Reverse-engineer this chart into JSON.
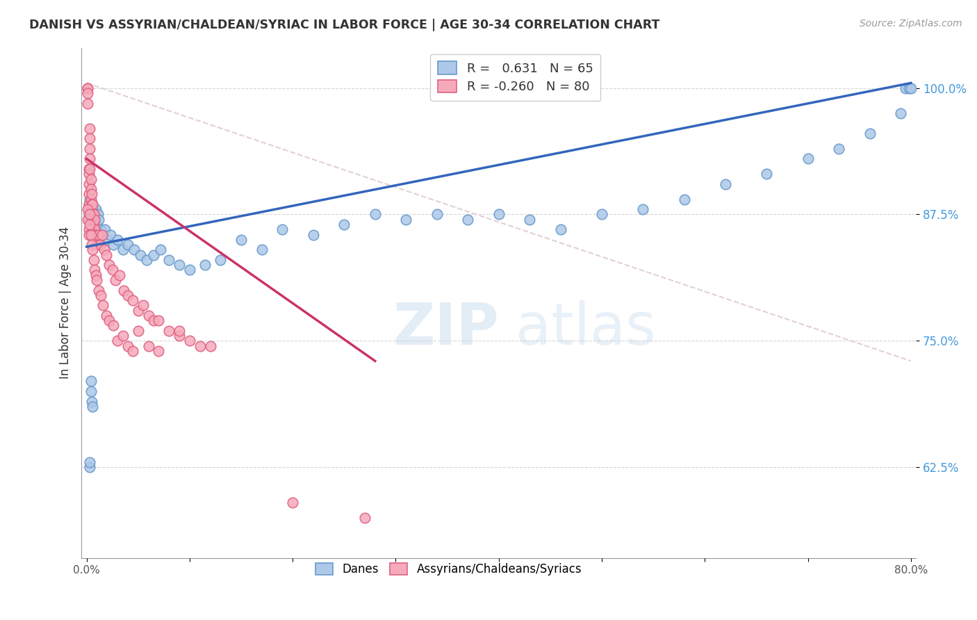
{
  "title": "DANISH VS ASSYRIAN/CHALDEAN/SYRIAC IN LABOR FORCE | AGE 30-34 CORRELATION CHART",
  "source": "Source: ZipAtlas.com",
  "ylabel": "In Labor Force | Age 30-34",
  "yticks": [
    0.625,
    0.75,
    0.875,
    1.0
  ],
  "ytick_labels": [
    "62.5%",
    "75.0%",
    "87.5%",
    "100.0%"
  ],
  "xlim": [
    -0.005,
    0.805
  ],
  "ylim": [
    0.535,
    1.04
  ],
  "legend_r_blue": "0.631",
  "legend_n_blue": "65",
  "legend_r_pink": "-0.260",
  "legend_n_pink": "80",
  "legend_label_blue": "Danes",
  "legend_label_pink": "Assyrians/Chaldeans/Syriacs",
  "blue_color": "#adc8e8",
  "pink_color": "#f5aabb",
  "blue_edge": "#6699cc",
  "pink_edge": "#e06080",
  "trend_blue_color": "#3366bb",
  "trend_pink_color": "#cc3366",
  "trend_gray_color": "#d0b0b8",
  "blue_trend_x": [
    0.0,
    0.8
  ],
  "blue_trend_y": [
    0.843,
    1.005
  ],
  "pink_trend_x": [
    0.0,
    0.28
  ],
  "pink_trend_y": [
    0.93,
    0.73
  ],
  "gray_trend_x": [
    0.0,
    0.8
  ],
  "gray_trend_y": [
    1.005,
    0.73
  ],
  "blue_scatter_x": [
    0.002,
    0.002,
    0.003,
    0.003,
    0.003,
    0.004,
    0.004,
    0.005,
    0.005,
    0.006,
    0.007,
    0.008,
    0.009,
    0.01,
    0.011,
    0.012,
    0.014,
    0.016,
    0.018,
    0.02,
    0.023,
    0.026,
    0.03,
    0.035,
    0.04,
    0.046,
    0.052,
    0.058,
    0.065,
    0.072,
    0.08,
    0.09,
    0.1,
    0.115,
    0.13,
    0.15,
    0.17,
    0.19,
    0.22,
    0.25,
    0.28,
    0.31,
    0.34,
    0.37,
    0.4,
    0.43,
    0.46,
    0.5,
    0.54,
    0.58,
    0.62,
    0.66,
    0.7,
    0.73,
    0.76,
    0.79,
    0.795,
    0.798,
    0.8,
    0.003,
    0.003,
    0.004,
    0.004,
    0.005,
    0.006
  ],
  "blue_scatter_y": [
    0.875,
    0.885,
    0.87,
    0.88,
    0.89,
    0.865,
    0.875,
    0.88,
    0.87,
    0.885,
    0.875,
    0.87,
    0.88,
    0.865,
    0.875,
    0.87,
    0.86,
    0.855,
    0.86,
    0.85,
    0.855,
    0.845,
    0.85,
    0.84,
    0.845,
    0.84,
    0.835,
    0.83,
    0.835,
    0.84,
    0.83,
    0.825,
    0.82,
    0.825,
    0.83,
    0.85,
    0.84,
    0.86,
    0.855,
    0.865,
    0.875,
    0.87,
    0.875,
    0.87,
    0.875,
    0.87,
    0.86,
    0.875,
    0.88,
    0.89,
    0.905,
    0.915,
    0.93,
    0.94,
    0.955,
    0.975,
    1.0,
    1.0,
    1.0,
    0.625,
    0.63,
    0.7,
    0.71,
    0.69,
    0.685
  ],
  "pink_scatter_x": [
    0.001,
    0.001,
    0.001,
    0.001,
    0.002,
    0.002,
    0.002,
    0.002,
    0.002,
    0.003,
    0.003,
    0.003,
    0.003,
    0.003,
    0.004,
    0.004,
    0.004,
    0.005,
    0.005,
    0.005,
    0.006,
    0.006,
    0.007,
    0.007,
    0.008,
    0.008,
    0.009,
    0.01,
    0.011,
    0.012,
    0.013,
    0.015,
    0.017,
    0.019,
    0.022,
    0.025,
    0.028,
    0.032,
    0.036,
    0.04,
    0.045,
    0.05,
    0.055,
    0.06,
    0.065,
    0.07,
    0.08,
    0.09,
    0.1,
    0.11,
    0.001,
    0.001,
    0.002,
    0.002,
    0.003,
    0.003,
    0.004,
    0.005,
    0.006,
    0.007,
    0.008,
    0.009,
    0.01,
    0.012,
    0.014,
    0.016,
    0.019,
    0.022,
    0.026,
    0.03,
    0.035,
    0.04,
    0.045,
    0.05,
    0.06,
    0.07,
    0.09,
    0.12,
    0.2,
    0.27
  ],
  "pink_scatter_y": [
    1.0,
    1.0,
    0.995,
    0.985,
    0.92,
    0.915,
    0.905,
    0.895,
    0.885,
    0.96,
    0.95,
    0.94,
    0.93,
    0.92,
    0.91,
    0.9,
    0.89,
    0.895,
    0.885,
    0.875,
    0.885,
    0.875,
    0.875,
    0.865,
    0.87,
    0.86,
    0.855,
    0.85,
    0.845,
    0.855,
    0.845,
    0.855,
    0.84,
    0.835,
    0.825,
    0.82,
    0.81,
    0.815,
    0.8,
    0.795,
    0.79,
    0.78,
    0.785,
    0.775,
    0.77,
    0.77,
    0.76,
    0.755,
    0.75,
    0.745,
    0.88,
    0.87,
    0.86,
    0.855,
    0.875,
    0.865,
    0.855,
    0.845,
    0.84,
    0.83,
    0.82,
    0.815,
    0.81,
    0.8,
    0.795,
    0.785,
    0.775,
    0.77,
    0.765,
    0.75,
    0.755,
    0.745,
    0.74,
    0.76,
    0.745,
    0.74,
    0.76,
    0.745,
    0.59,
    0.575
  ]
}
